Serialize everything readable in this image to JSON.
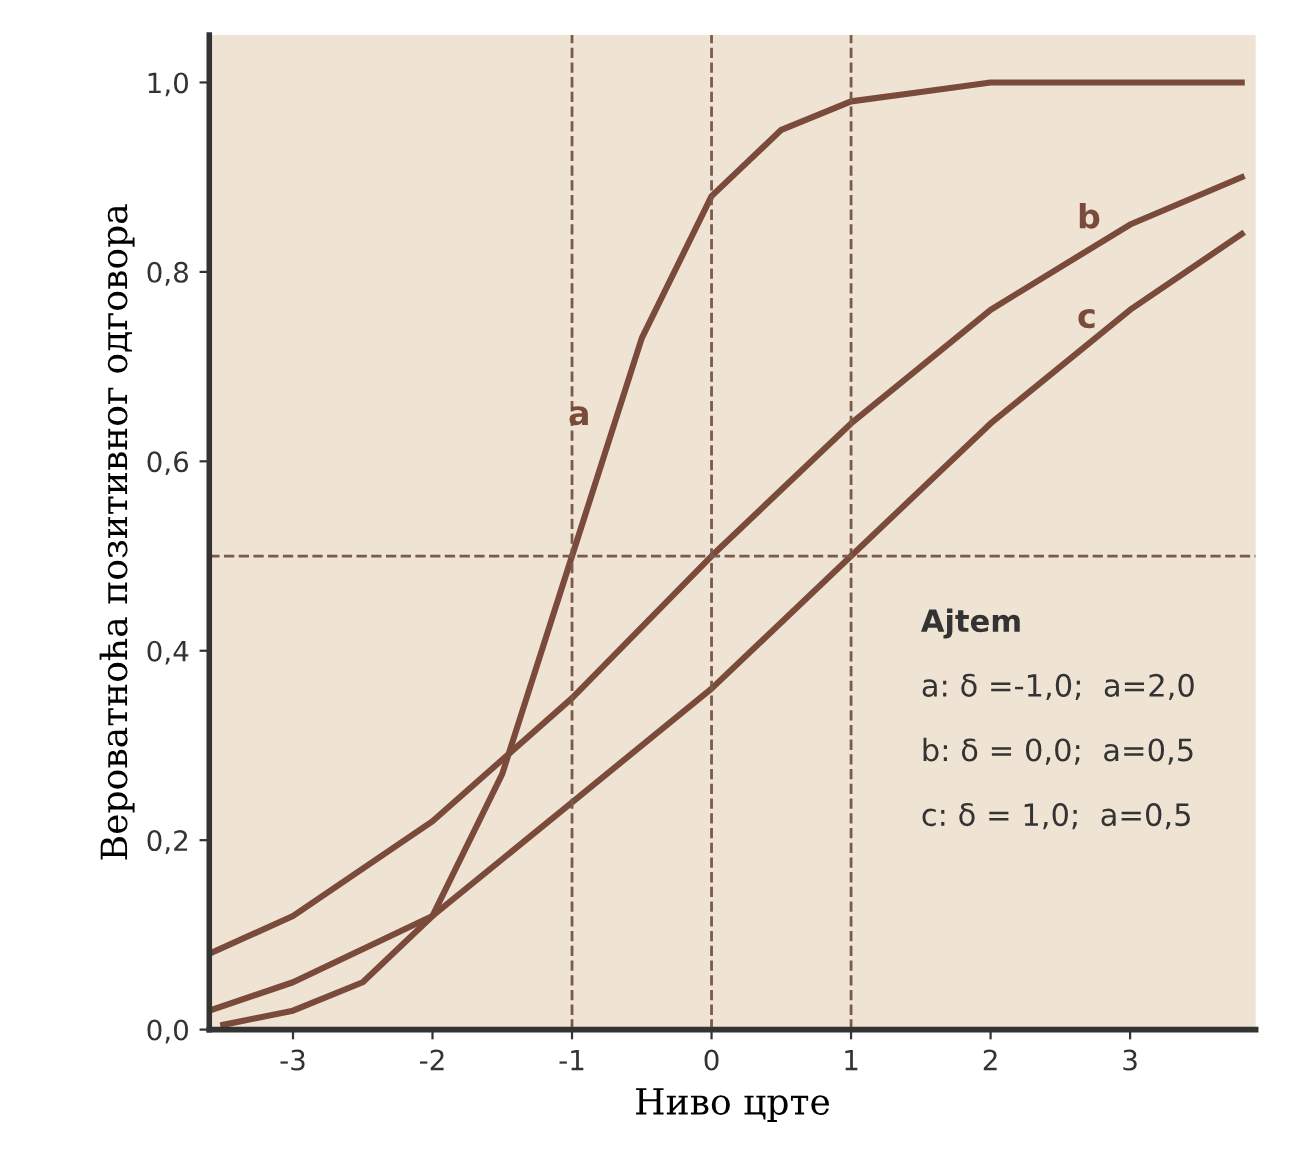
{
  "chart_data": {
    "type": "line",
    "xlabel": "Ниво црте",
    "ylabel": "Вероватноћа позитивног одговора",
    "xlim": [
      -3.6,
      3.9
    ],
    "ylim": [
      0,
      1.05
    ],
    "xticks": [
      -3,
      -2,
      -1,
      0,
      1,
      2,
      3
    ],
    "yticks": [
      {
        "value": 0,
        "label": "0,0"
      },
      {
        "value": 0.2,
        "label": "0,2"
      },
      {
        "value": 0.4,
        "label": "0,4"
      },
      {
        "value": 0.6,
        "label": "0,6"
      },
      {
        "value": 0.8,
        "label": "0,8"
      },
      {
        "value": 1.0,
        "label": "1,0"
      }
    ],
    "series": [
      {
        "name": "a",
        "color": "#7a4a3a",
        "x": [
          -3.5,
          -3,
          -2.5,
          -2,
          -1.5,
          -1,
          -0.5,
          0,
          0.5,
          1,
          1.5,
          2,
          3,
          3.8
        ],
        "values": [
          0.005,
          0.02,
          0.05,
          0.12,
          0.27,
          0.5,
          0.73,
          0.88,
          0.95,
          0.98,
          0.99,
          1.0,
          1.0,
          1.0
        ]
      },
      {
        "name": "b",
        "color": "#7a4a3a",
        "x": [
          -3.6,
          -3,
          -2,
          -1,
          0,
          1,
          2,
          3,
          3.8
        ],
        "values": [
          0.08,
          0.12,
          0.22,
          0.35,
          0.5,
          0.64,
          0.76,
          0.85,
          0.9
        ]
      },
      {
        "name": "c",
        "color": "#7a4a3a",
        "x": [
          -3.6,
          -3,
          -2,
          -1,
          0,
          1,
          2,
          3,
          3.8
        ],
        "values": [
          0.02,
          0.05,
          0.12,
          0.24,
          0.36,
          0.5,
          0.64,
          0.76,
          0.84
        ]
      }
    ],
    "ref_lines": [
      {
        "axis": "x",
        "value": -1,
        "line_style": "dashed",
        "color": "#7a5a4a"
      },
      {
        "axis": "x",
        "value": 0,
        "line_style": "dashed",
        "color": "#7a5a4a"
      },
      {
        "axis": "x",
        "value": 1,
        "line_style": "dashed",
        "color": "#7a5a4a"
      },
      {
        "axis": "y",
        "value": 0.5,
        "line_style": "dashed",
        "color": "#7a5a4a"
      }
    ],
    "annotations": [
      "Ajtem",
      "a: δ =-1,0;  a=2,0",
      "b: δ = 0,0;  a=0,5",
      "c: δ = 1,0;  a=0,5"
    ],
    "grid": false,
    "marker": "none",
    "line_style": "solid"
  }
}
